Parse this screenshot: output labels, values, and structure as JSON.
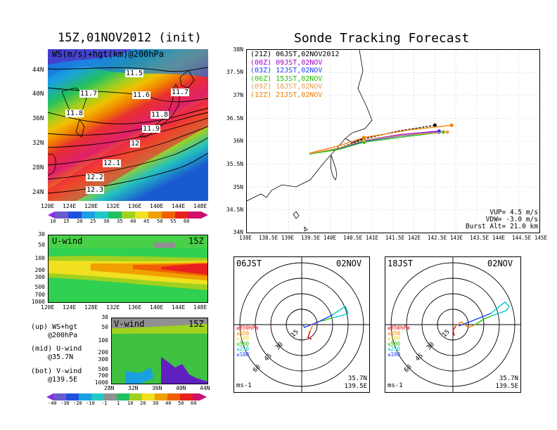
{
  "left_title": "15Z,01NOV2012 (init)",
  "right_title": "Sonde Tracking Forecast",
  "colors": {
    "red": "#e60000",
    "orange": "#f08000",
    "yellow": "#e6dc32",
    "green": "#22c000",
    "cyan": "#00c8c8",
    "blue": "#1e3cff",
    "purple": "#a000c8",
    "magenta": "#d01ad0",
    "black": "#000000"
  },
  "map_panel": {
    "label": "WS(m/s)+hgt(km)@200hPa",
    "lat_ticks": [
      "44N",
      "40N",
      "36N",
      "32N",
      "28N",
      "24N"
    ],
    "lon_ticks": [
      "120E",
      "124E",
      "128E",
      "132E",
      "136E",
      "140E",
      "144E",
      "148E"
    ],
    "contour_labels": [
      "11.5",
      "11.7",
      "11.6",
      "11.7",
      "11.8",
      "11.8",
      "11.9",
      "12",
      "12.1",
      "12.2",
      "12.3"
    ],
    "colorbar_ticks": [
      "10",
      "15",
      "20",
      "25",
      "30",
      "35",
      "40",
      "45",
      "50",
      "55",
      "60"
    ]
  },
  "uwind_panel": {
    "label": "U-wind",
    "time": "15Z",
    "p_ticks": [
      "30",
      "50",
      "100",
      "200",
      "300",
      "500",
      "700",
      "1000"
    ],
    "lon_ticks": [
      "120E",
      "124E",
      "128E",
      "132E",
      "136E",
      "140E",
      "144E",
      "148E"
    ]
  },
  "vwind_panel": {
    "label": "V-wind",
    "time": "15Z",
    "p_ticks": [
      "30",
      "50",
      "100",
      "200",
      "300",
      "500",
      "700",
      "1000"
    ],
    "lat_ticks": [
      "28N",
      "32N",
      "36N",
      "40N",
      "44N"
    ]
  },
  "legend_lines": [
    "(up) WS+hgt",
    "@200hPa",
    "(mid) U-wind",
    "@35.7N",
    "(bot) V-wind",
    "@139.5E"
  ],
  "bottom_colorbar_ticks": [
    "-40",
    "-30",
    "-20",
    "-10",
    "-1",
    "1",
    "10",
    "20",
    "30",
    "40",
    "50",
    "60"
  ],
  "tracking": {
    "runs": [
      {
        "label": "(21Z)  06JST,02NOV2012",
        "color": "#000000"
      },
      {
        "label": "(00Z)  09JST,02NOV",
        "color": "#a000c8"
      },
      {
        "label": "(03Z)  12JST,02NOV",
        "color": "#1e3cff"
      },
      {
        "label": "(06Z)  15JST,02NOV",
        "color": "#22c000"
      },
      {
        "label": "(09Z)  18JST,02NOV",
        "color": "#e6a050"
      },
      {
        "label": "(12Z)  21JST,02NOV",
        "color": "#f08000"
      }
    ],
    "lat_ticks": [
      "38N",
      "37.5N",
      "37N",
      "36.5N",
      "36N",
      "35.5N",
      "35N",
      "34.5N",
      "34N"
    ],
    "lon_ticks": [
      "138E",
      "138.5E",
      "139E",
      "139.5E",
      "140E",
      "140.5E",
      "141E",
      "141.5E",
      "142E",
      "142.5E",
      "143E",
      "143.5E",
      "144E",
      "144.5E",
      "145E"
    ],
    "info": [
      "VUP= 4.5 m/s",
      "VDW= -3.0 m/s",
      "Burst Alt= 21.0 km"
    ]
  },
  "chart_data": {
    "type": "line",
    "title": "Sonde Tracking Forecast",
    "x_label": "",
    "y_label": "",
    "xlim": [
      138,
      145
    ],
    "ylim": [
      34,
      38
    ],
    "launch_point": {
      "lon": 139.5,
      "lat": 35.7
    },
    "series": [
      {
        "name": "(21Z) 06JST,02NOV2012",
        "lon": [
          139.5,
          140.2,
          140.8,
          141.6,
          142.5
        ],
        "lat": [
          35.72,
          35.85,
          36.05,
          36.22,
          36.35
        ]
      },
      {
        "name": "(00Z) 09JST,02NOV",
        "lon": [
          139.5,
          140.2,
          140.8,
          141.7,
          142.6
        ],
        "lat": [
          35.72,
          35.84,
          36.02,
          36.15,
          36.22
        ]
      },
      {
        "name": "(03Z) 12JST,02NOV",
        "lon": [
          139.5,
          140.2,
          140.8,
          141.7,
          142.6
        ],
        "lat": [
          35.72,
          35.83,
          36.0,
          36.12,
          36.2
        ]
      },
      {
        "name": "(06Z) 15JST,02NOV",
        "lon": [
          139.5,
          140.2,
          140.8,
          141.8,
          142.7
        ],
        "lat": [
          35.72,
          35.82,
          35.98,
          36.1,
          36.2
        ]
      },
      {
        "name": "(09Z) 18JST,02NOV",
        "lon": [
          139.5,
          140.2,
          140.8,
          141.8,
          142.8
        ],
        "lat": [
          35.73,
          35.85,
          36.02,
          36.14,
          36.2
        ]
      },
      {
        "name": "(12Z) 21JST,02NOV",
        "lon": [
          139.5,
          140.2,
          140.8,
          141.9,
          142.9
        ],
        "lat": [
          35.74,
          35.9,
          36.08,
          36.25,
          36.35
        ]
      }
    ]
  },
  "hodographs": [
    {
      "time": "06JST",
      "date": "02NOV",
      "loc1": "35.7N",
      "loc2": "139.5E",
      "unit": "ms-1",
      "ring_labels": [
        "15",
        "30",
        "45",
        "60"
      ],
      "levels": [
        "≥850hPa",
        "≤850",
        "≤700",
        "≤500",
        "≤250",
        "≤100"
      ]
    },
    {
      "time": "18JST",
      "date": "02NOV",
      "loc1": "35.7N",
      "loc2": "139.5E",
      "unit": "ms-1",
      "ring_labels": [
        "15",
        "30",
        "45",
        "60"
      ],
      "levels": [
        "≥850hPa",
        "≤850",
        "≤700",
        "≤500",
        "≤250",
        "≤100"
      ]
    }
  ]
}
